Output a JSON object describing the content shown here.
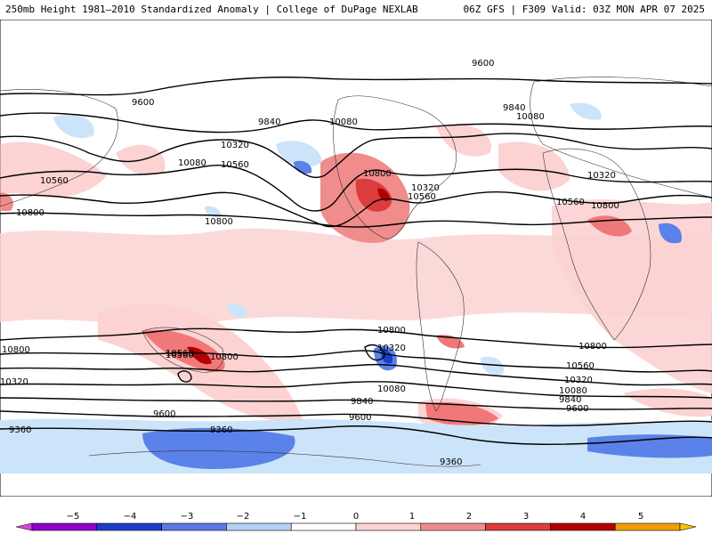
{
  "header": {
    "left": "250mb Height 1981–2010 Standardized Anomaly | College of DuPage NEXLAB",
    "right": "06Z GFS | F309 Valid: 03Z MON APR 07 2025"
  },
  "contour_labels": [
    "9600",
    "9600",
    "9840",
    "9840",
    "9600",
    "9360",
    "9360",
    "9360",
    "10080",
    "10080",
    "10080",
    "10320",
    "10320",
    "10320",
    "10320",
    "10560",
    "10560",
    "10560",
    "10560",
    "10560",
    "10800",
    "10800",
    "10800",
    "10800",
    "10800",
    "10800",
    "10800",
    "10560",
    "10320",
    "10080",
    "9840",
    "9600",
    "10800",
    "10320",
    "10560",
    "9840",
    "10080",
    "9600"
  ],
  "colorbar": {
    "ticks": [
      "−5",
      "−4",
      "−3",
      "−2",
      "−1",
      "0",
      "1",
      "2",
      "3",
      "4",
      "5"
    ],
    "colors": [
      "#e040e0",
      "#8c00c8",
      "#1e3cc8",
      "#5a78e6",
      "#b4d2f5",
      "#ffffff",
      "#fcd2d2",
      "#f08c8c",
      "#dc3c3c",
      "#b40000",
      "#f0a000",
      "#f0c800"
    ]
  },
  "shading_colors": {
    "blue_light": "#cce4fa",
    "blue_mid": "#5a82e8",
    "blue_dark": "#1e3cc8",
    "pink_light": "#fcd2d2",
    "red_mid": "#f07878",
    "red_dark": "#b40000"
  }
}
